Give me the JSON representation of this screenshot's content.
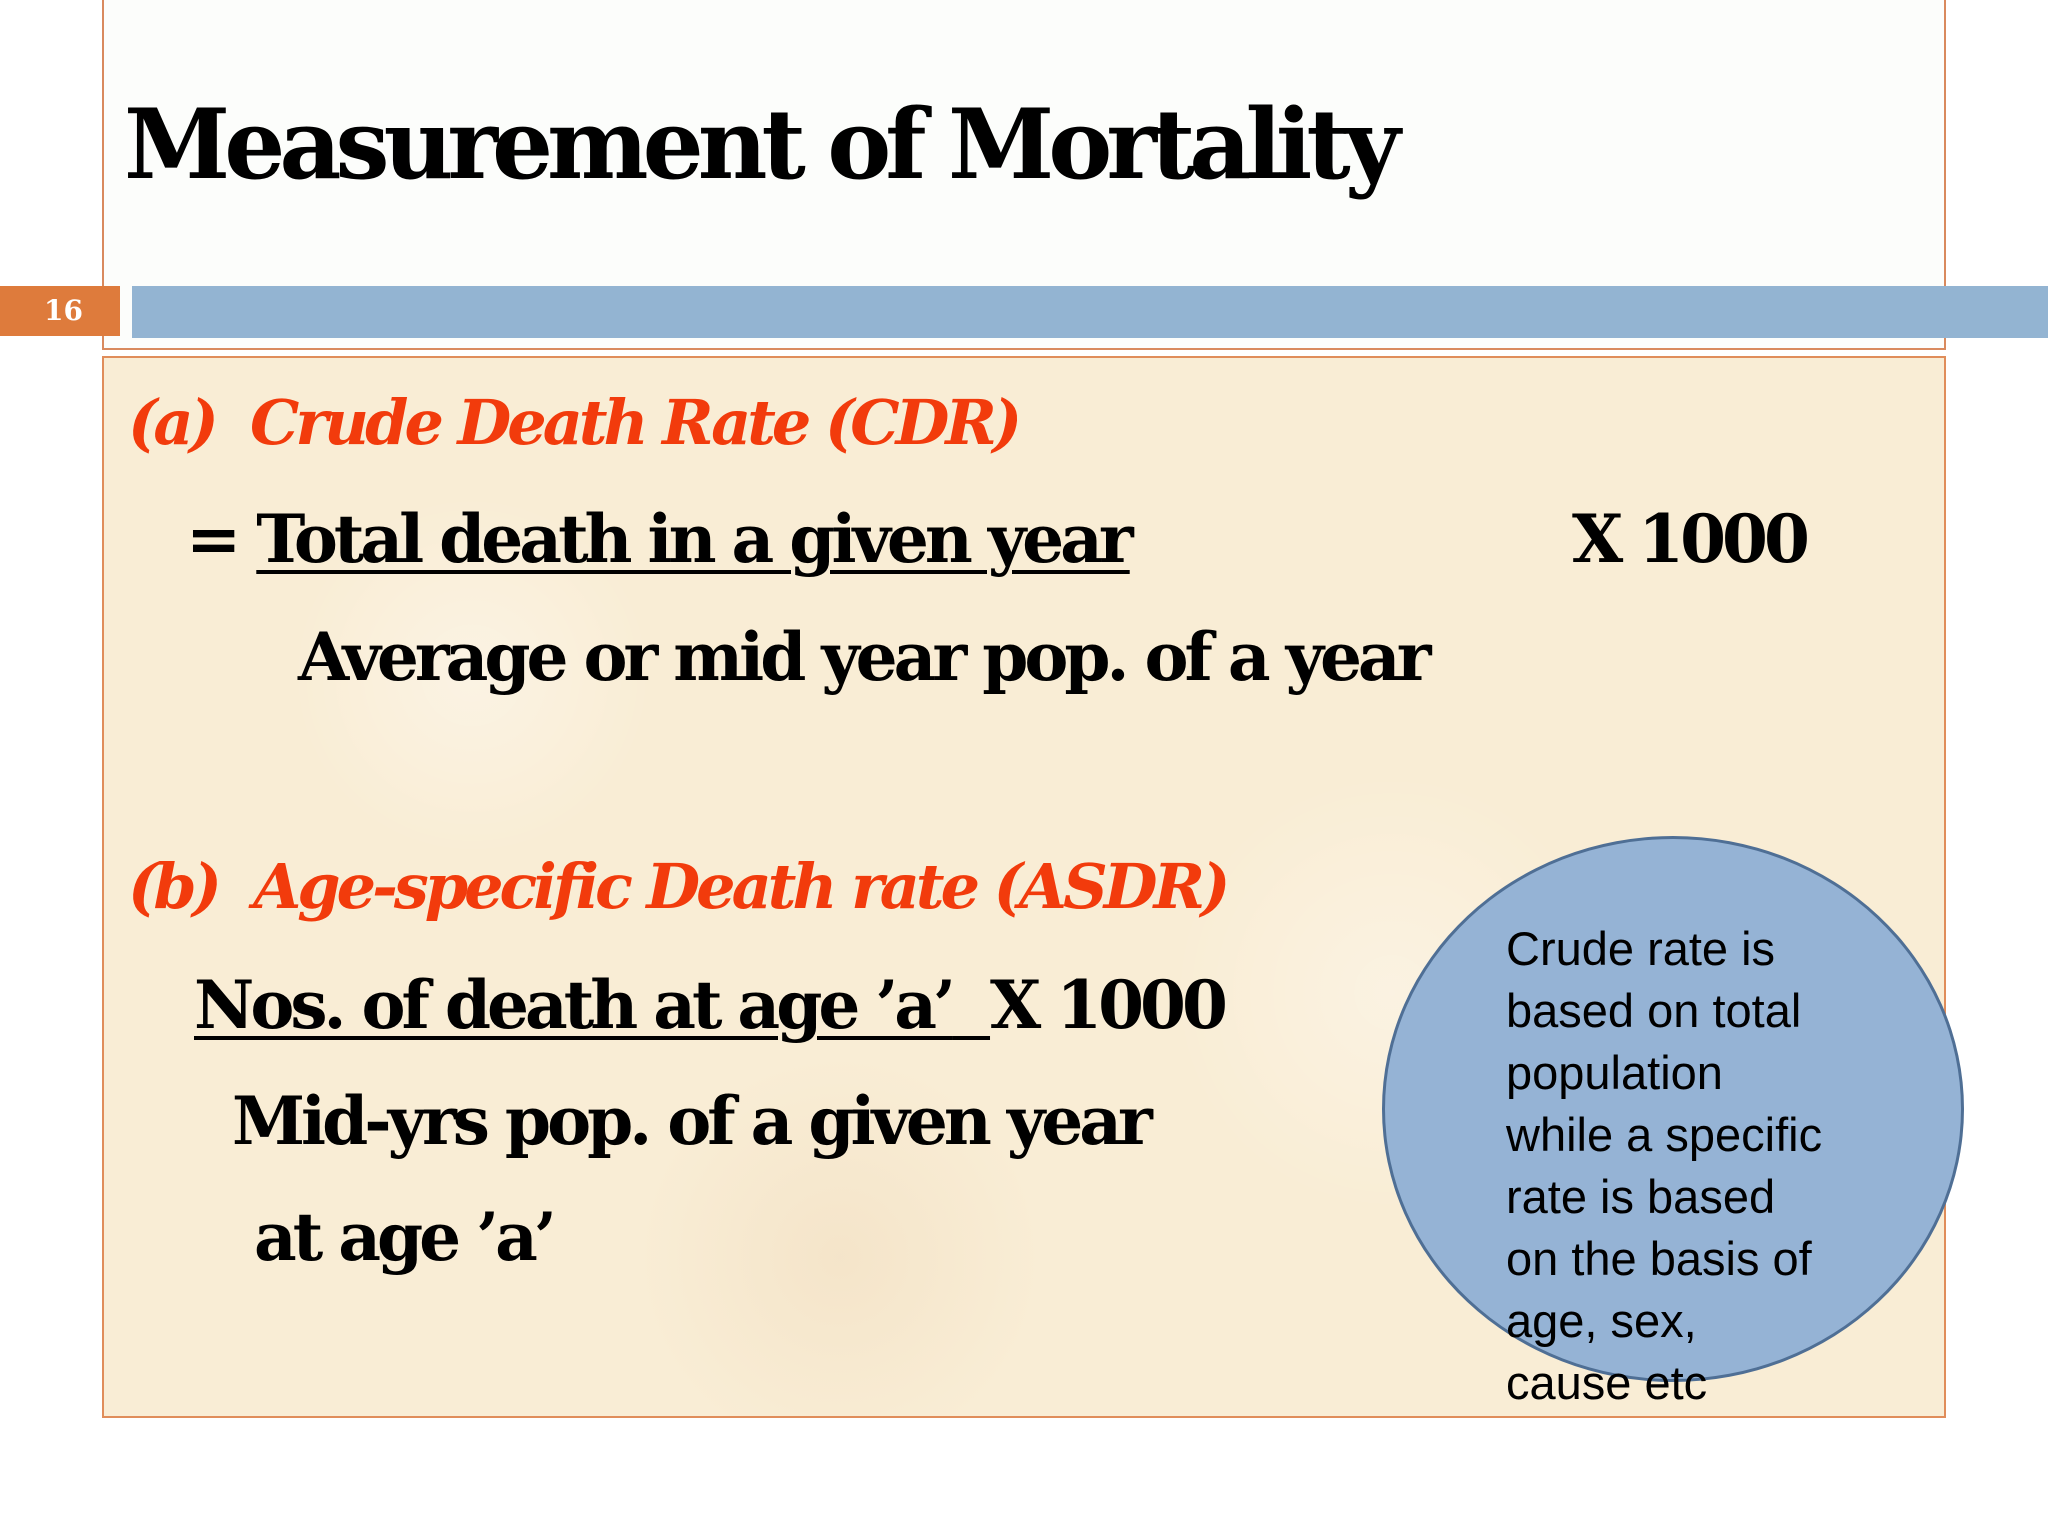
{
  "slide": {
    "number": "16",
    "title": "Measurement of Mortality"
  },
  "section_a": {
    "heading_label": "(a)",
    "heading_text": "Crude Death Rate (CDR)",
    "equals": "=",
    "numerator": "Total death in a given year",
    "multiplier": "X 1000",
    "denominator": "Average or mid year pop. of a year"
  },
  "section_b": {
    "heading_label": "(b)",
    "heading_text": "Age-specific Death rate (ASDR)",
    "numerator": "Nos. of death at age ’a’",
    "multiplier": "X 1000",
    "denominator_line1": "Mid-yrs pop. of a given year",
    "denominator_line2": "at age ’a’"
  },
  "callout": {
    "lines": [
      "Crude rate is",
      "based on total",
      "population",
      "while a specific",
      "rate is based",
      "on the basis of",
      "age, sex,",
      "cause etc"
    ]
  },
  "colors": {
    "heading_red": "#f23b0c",
    "accent_blue": "#93b4d2",
    "slide_number_orange": "#de7b3c",
    "callout_fill": "#95b3d5"
  }
}
